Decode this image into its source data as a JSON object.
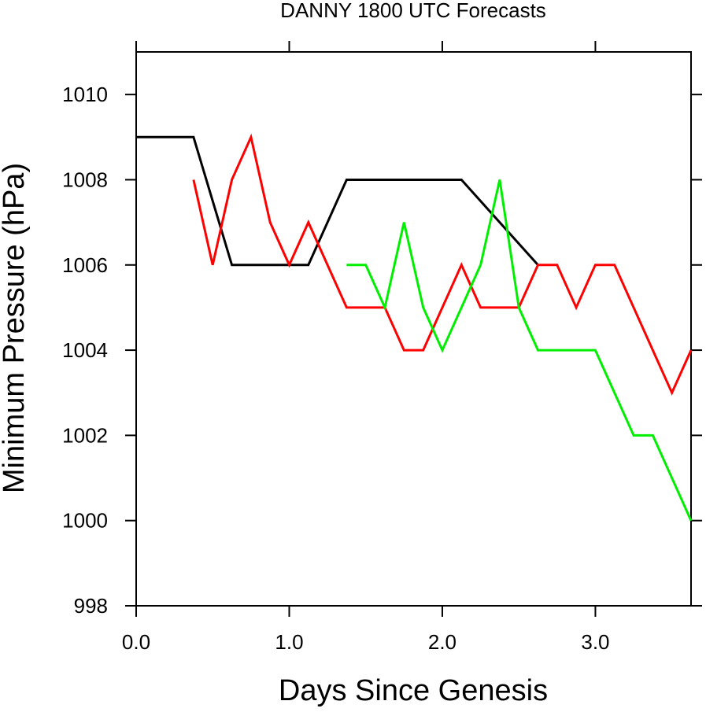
{
  "chart_data": {
    "type": "line",
    "title": "DANNY 1800 UTC Forecasts",
    "xlabel": "Days Since Genesis",
    "ylabel": "Minimum Pressure (hPa)",
    "xlim": [
      0,
      3.625
    ],
    "ylim": [
      998,
      1011
    ],
    "x_ticks": [
      0,
      1,
      2,
      3
    ],
    "x_tick_labels": [
      "0.0",
      "1.0",
      "2.0",
      "3.0"
    ],
    "y_ticks": [
      998,
      1000,
      1002,
      1004,
      1006,
      1008,
      1010
    ],
    "y_tick_labels": [
      "998",
      "1000",
      "1002",
      "1004",
      "1006",
      "1008",
      "1010"
    ],
    "grid": false,
    "legend": "none",
    "series": [
      {
        "color": "#000000",
        "x": [
          0,
          0.375,
          0.625,
          1.125,
          1.375,
          2.125,
          2.625
        ],
        "y": [
          1009,
          1009,
          1006,
          1006,
          1008,
          1008,
          1006
        ]
      },
      {
        "color": "#ff0000",
        "x": [
          0.375,
          0.5,
          0.625,
          0.75,
          0.875,
          1.0,
          1.125,
          1.375,
          1.625,
          1.75,
          1.875,
          2.0,
          2.125,
          2.25,
          2.5,
          2.625,
          2.75,
          2.875,
          3.0,
          3.125,
          3.5,
          3.625
        ],
        "y": [
          1008,
          1006,
          1008,
          1009,
          1007,
          1006,
          1007,
          1005,
          1005,
          1004,
          1004,
          1005,
          1006,
          1005,
          1005,
          1006,
          1006,
          1005,
          1006,
          1006,
          1003,
          1004
        ]
      },
      {
        "color": "#00ee00",
        "x": [
          1.375,
          1.5,
          1.625,
          1.75,
          1.875,
          2.0,
          2.25,
          2.375,
          2.5,
          2.625,
          3.0,
          3.25,
          3.375,
          3.625
        ],
        "y": [
          1006,
          1006,
          1005,
          1007,
          1005,
          1004,
          1006,
          1008,
          1005,
          1004,
          1004,
          1002,
          1002,
          1000
        ]
      }
    ]
  }
}
